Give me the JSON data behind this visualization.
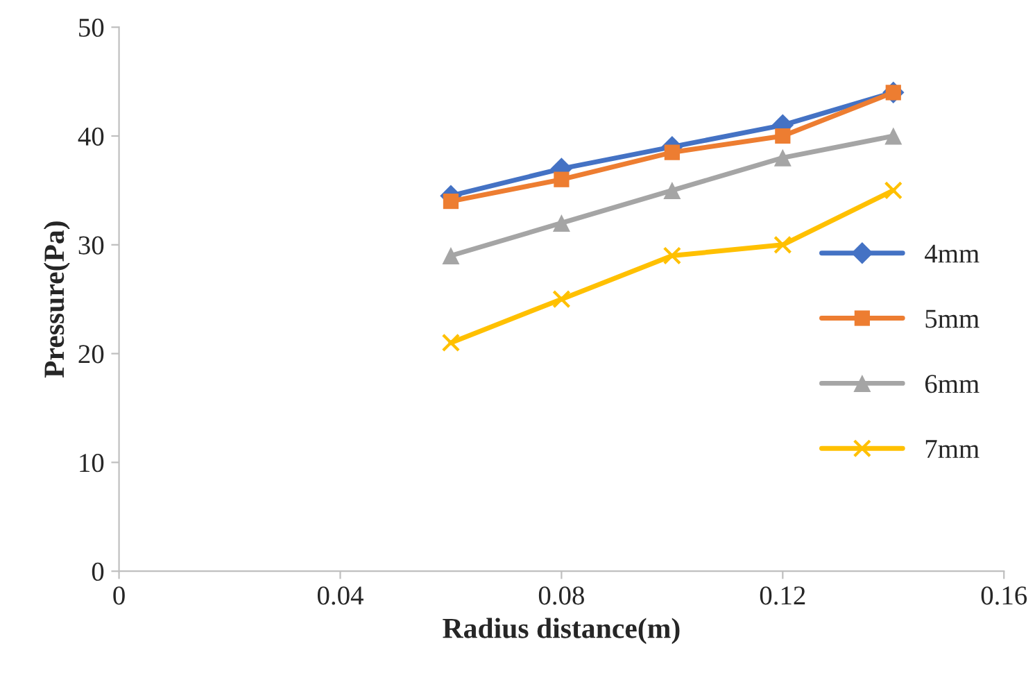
{
  "chart_data": {
    "type": "line",
    "xlabel": "Radius distance(m)",
    "ylabel": "Pressure(Pa)",
    "x": [
      0.06,
      0.08,
      0.1,
      0.12,
      0.14
    ],
    "series": [
      {
        "name": "4mm",
        "color": "#4472c4",
        "marker": "diamond",
        "values": [
          34.5,
          37,
          39,
          41,
          44
        ]
      },
      {
        "name": "5mm",
        "color": "#ed7d31",
        "marker": "square",
        "values": [
          34,
          36,
          38.5,
          40,
          44
        ]
      },
      {
        "name": "6mm",
        "color": "#a5a5a5",
        "marker": "triangle",
        "values": [
          29,
          32,
          35,
          38,
          40
        ]
      },
      {
        "name": "7mm",
        "color": "#ffc000",
        "marker": "cross",
        "values": [
          21,
          25,
          29,
          30,
          35
        ]
      }
    ],
    "xlim": [
      0,
      0.16
    ],
    "xticks": [
      0,
      0.04,
      0.08,
      0.12,
      0.16
    ],
    "ylim": [
      0,
      50
    ],
    "yticks": [
      0,
      10,
      20,
      30,
      40,
      50
    ],
    "grid": false,
    "legend": "right",
    "line_style": "solid"
  }
}
